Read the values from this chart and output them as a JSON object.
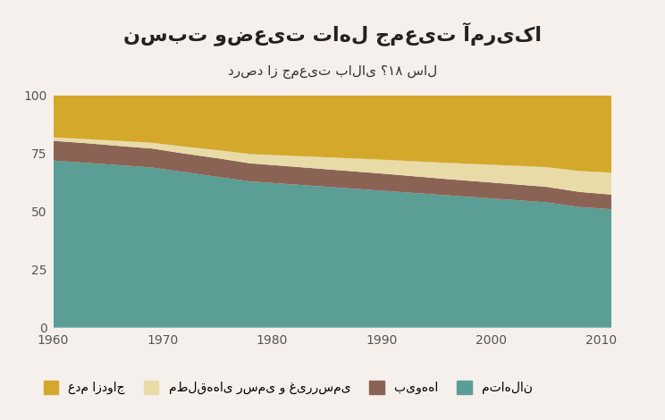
{
  "title": "نسبت وضعیت تاهل جمعیت آمریکا",
  "subtitle": "درصد از جمعیت بالای ؟۱۸ سال",
  "years": [
    1960,
    1963,
    1966,
    1969,
    1972,
    1975,
    1978,
    1981,
    1984,
    1987,
    1990,
    1993,
    1996,
    1999,
    2002,
    2005,
    2008,
    2011
  ],
  "married": [
    72,
    71,
    70,
    69,
    67,
    65,
    63,
    62,
    61,
    60,
    59,
    58,
    57,
    56,
    55,
    54,
    52,
    51
  ],
  "widowed": [
    8.5,
    8.5,
    8.3,
    8.2,
    8.0,
    8.0,
    7.8,
    7.7,
    7.6,
    7.5,
    7.4,
    7.2,
    7.0,
    6.9,
    6.8,
    6.7,
    6.5,
    6.3
  ],
  "divorced": [
    1.5,
    1.8,
    2.2,
    2.5,
    3.0,
    3.5,
    4.0,
    4.5,
    5.0,
    5.5,
    6.0,
    6.5,
    7.0,
    7.5,
    8.0,
    8.5,
    9.0,
    9.5
  ],
  "never_married": [
    18,
    18.7,
    19.5,
    20.3,
    22.0,
    23.5,
    25.2,
    25.8,
    26.4,
    27.0,
    27.6,
    28.3,
    29.0,
    29.6,
    30.2,
    30.8,
    32.5,
    33.2
  ],
  "color_married": "#5a9e96",
  "color_widowed": "#8b6355",
  "color_divorced": "#e8dba8",
  "color_never_married": "#d4a82a",
  "bg_color": "#f5f0eb",
  "legend_married": "متاهلان",
  "legend_widowed": "بیوه‌ها",
  "legend_divorced": "مطلقه‌های رسمی و غیررسمی",
  "legend_never_married": "عدم ازدواج",
  "ylim": [
    0,
    105
  ],
  "yticks": [
    0,
    25,
    50,
    75,
    100
  ],
  "xticks": [
    1960,
    1970,
    1980,
    1990,
    2000,
    2010
  ]
}
